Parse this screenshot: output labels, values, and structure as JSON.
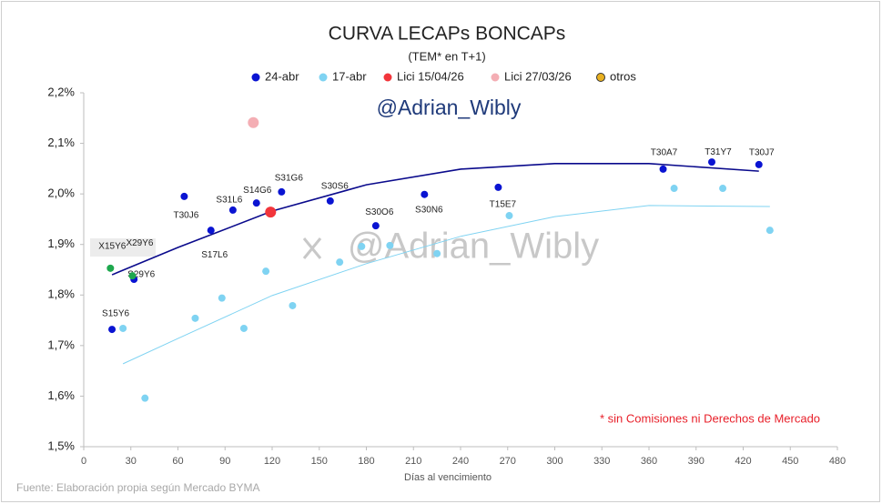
{
  "chart_data": {
    "type": "scatter",
    "title": "CURVA LECAPs BONCAPs",
    "subtitle": "(TEM* en T+1)",
    "watermark": "@Adrian_Wibly",
    "x_label": "Días al vencimiento",
    "note": "* sin Comisiones ni Derechos de Mercado",
    "source": "Fuente: Elaboración propia según Mercado BYMA",
    "xlim": [
      0,
      480
    ],
    "xticks": [
      0,
      30,
      60,
      90,
      120,
      150,
      180,
      210,
      240,
      270,
      300,
      330,
      360,
      390,
      420,
      450,
      480
    ],
    "ylim": [
      1.5,
      2.2
    ],
    "yticks": [
      {
        "value": 1.5,
        "label": "1,5%"
      },
      {
        "value": 1.6,
        "label": "1,6%"
      },
      {
        "value": 1.7,
        "label": "1,7%"
      },
      {
        "value": 1.8,
        "label": "1,8%"
      },
      {
        "value": 1.9,
        "label": "1,9%"
      },
      {
        "value": 2.0,
        "label": "2,0%"
      },
      {
        "value": 2.1,
        "label": "2,1%"
      },
      {
        "value": 2.2,
        "label": "2,2%"
      }
    ],
    "grid": false,
    "series": [
      {
        "name": "24-abr",
        "color": "#0a14d2",
        "x": [
          18,
          32,
          64,
          81,
          95,
          110,
          126,
          157,
          186,
          217,
          264,
          369,
          400,
          430
        ],
        "values": [
          1.732,
          1.831,
          1.995,
          1.928,
          1.968,
          1.982,
          2.004,
          1.986,
          1.937,
          1.999,
          2.013,
          2.049,
          2.063,
          2.058
        ],
        "labels": [
          "S15Y6",
          "S29Y6",
          "T30J6",
          "S17L6",
          "S31L6",
          "S14G6",
          "S31G6",
          "S30S6",
          "S30O6",
          "S30N6",
          "T15E7",
          "T30A7",
          "T31Y7",
          "T30J7"
        ]
      },
      {
        "name": "17-abr",
        "color": "#7fd3f2",
        "x": [
          25,
          39,
          71,
          88,
          102,
          116,
          133,
          163,
          177,
          195,
          225,
          271,
          376,
          407,
          437
        ],
        "values": [
          1.734,
          1.596,
          1.754,
          1.794,
          1.734,
          1.847,
          1.779,
          1.865,
          1.896,
          1.898,
          1.882,
          1.957,
          2.011,
          2.011,
          1.928
        ]
      },
      {
        "name": "Lici 15/04/26",
        "color": "#f2353b",
        "x": [
          119
        ],
        "values": [
          1.964
        ]
      },
      {
        "name": "Lici 27/03/26",
        "color": "#f4aeb4",
        "x": [
          108
        ],
        "values": [
          2.141
        ]
      },
      {
        "name": "otros",
        "color": "#e8b020",
        "x": [],
        "values": []
      },
      {
        "name": null,
        "color": "#1ea84e",
        "x": [
          17,
          31
        ],
        "values": [
          1.853,
          1.838
        ],
        "labels": [
          "X15Y6",
          "X29Y6"
        ]
      }
    ],
    "trendlines": [
      {
        "color": "#0a0a8c",
        "x": [
          18,
          60,
          120,
          180,
          240,
          300,
          360,
          430
        ],
        "values": [
          1.84,
          1.894,
          1.966,
          2.018,
          2.049,
          2.06,
          2.06,
          2.045
        ]
      },
      {
        "color": "#7fd3f2",
        "x": [
          25,
          60,
          120,
          180,
          240,
          300,
          360,
          437
        ],
        "values": [
          1.664,
          1.714,
          1.799,
          1.862,
          1.916,
          1.955,
          1.977,
          1.975
        ]
      }
    ]
  }
}
